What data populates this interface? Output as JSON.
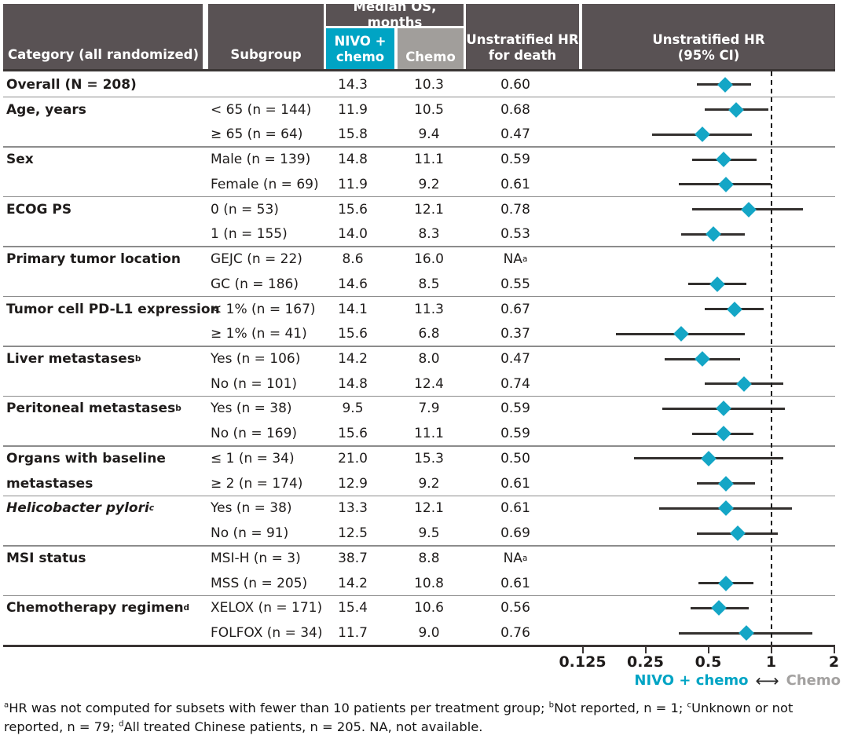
{
  "colors": {
    "header_bg": "#595254",
    "nivo_teal": "#00a4c4",
    "chemo_gray": "#a19e9b",
    "marker_teal": "#14a6c6",
    "text": "#1f1c1b",
    "separator": "#8c8c8c",
    "axis_dark": "#3a3534",
    "legend_chemo_gray": "#a3a1a0"
  },
  "header": {
    "category": "Category (all randomized)",
    "subgroup": "Subgroup",
    "median_os": "Median OS, months",
    "nivo_line1": "NIVO +",
    "nivo_line2": "chemo",
    "chemo": "Chemo",
    "hr_death_line1": "Unstratified HR",
    "hr_death_line2": "for death",
    "hr_ci_line1": "Unstratified HR",
    "hr_ci_line2": "(95% CI)"
  },
  "chart_data": {
    "type": "table",
    "description": "Forest plot of unstratified hazard ratios for death by subgroup",
    "x_axis": {
      "scale": "log2",
      "ticks": [
        0.125,
        0.25,
        0.5,
        1,
        2
      ],
      "tick_labels": [
        "0.125",
        "0.25",
        "0.5",
        "1",
        "2"
      ],
      "reference_line": 1
    },
    "legend": {
      "left": "NIVO + chemo",
      "arrow": "⟷",
      "right": "Chemo"
    },
    "groups": [
      {
        "category_lines": [
          "Overall (N = 208)"
        ],
        "category_sup": "",
        "italic": false,
        "rows": [
          {
            "subgroup": "",
            "nivo": "14.3",
            "chemo": "10.3",
            "hr_text": "0.60",
            "hr_sup": "",
            "hr": 0.6,
            "ci": [
              0.44,
              0.8
            ]
          }
        ]
      },
      {
        "category_lines": [
          "Age, years"
        ],
        "category_sup": "",
        "italic": false,
        "rows": [
          {
            "subgroup": "< 65 (n = 144)",
            "nivo": "11.9",
            "chemo": "10.5",
            "hr_text": "0.68",
            "hr_sup": "",
            "hr": 0.68,
            "ci": [
              0.48,
              0.97
            ]
          },
          {
            "subgroup": "≥ 65 (n = 64)",
            "nivo": "15.8",
            "chemo": "9.4",
            "hr_text": "0.47",
            "hr_sup": "",
            "hr": 0.47,
            "ci": [
              0.27,
              0.81
            ]
          }
        ]
      },
      {
        "category_lines": [
          "Sex"
        ],
        "category_sup": "",
        "italic": false,
        "rows": [
          {
            "subgroup": "Male (n = 139)",
            "nivo": "14.8",
            "chemo": "11.1",
            "hr_text": "0.59",
            "hr_sup": "",
            "hr": 0.59,
            "ci": [
              0.42,
              0.85
            ]
          },
          {
            "subgroup": "Female (n = 69)",
            "nivo": "11.9",
            "chemo": "9.2",
            "hr_text": "0.61",
            "hr_sup": "",
            "hr": 0.61,
            "ci": [
              0.36,
              1.0
            ]
          }
        ]
      },
      {
        "category_lines": [
          "ECOG PS"
        ],
        "category_sup": "",
        "italic": false,
        "rows": [
          {
            "subgroup": "0 (n = 53)",
            "nivo": "15.6",
            "chemo": "12.1",
            "hr_text": "0.78",
            "hr_sup": "",
            "hr": 0.78,
            "ci": [
              0.42,
              1.42
            ]
          },
          {
            "subgroup": "1 (n = 155)",
            "nivo": "14.0",
            "chemo": "8.3",
            "hr_text": "0.53",
            "hr_sup": "",
            "hr": 0.53,
            "ci": [
              0.37,
              0.75
            ]
          }
        ]
      },
      {
        "category_lines": [
          "Primary tumor location"
        ],
        "category_sup": "",
        "italic": false,
        "rows": [
          {
            "subgroup": "GEJC (n = 22)",
            "nivo": "8.6",
            "chemo": "16.0",
            "hr_text": "NA",
            "hr_sup": "a",
            "hr": null,
            "ci": null
          },
          {
            "subgroup": "GC (n = 186)",
            "nivo": "14.6",
            "chemo": "8.5",
            "hr_text": "0.55",
            "hr_sup": "",
            "hr": 0.55,
            "ci": [
              0.4,
              0.76
            ]
          }
        ]
      },
      {
        "category_lines": [
          "Tumor cell PD-L1 expression"
        ],
        "category_sup": "",
        "italic": false,
        "rows": [
          {
            "subgroup": "< 1% (n = 167)",
            "nivo": "14.1",
            "chemo": "11.3",
            "hr_text": "0.67",
            "hr_sup": "",
            "hr": 0.67,
            "ci": [
              0.48,
              0.92
            ]
          },
          {
            "subgroup": "≥ 1% (n = 41)",
            "nivo": "15.6",
            "chemo": "6.8",
            "hr_text": "0.37",
            "hr_sup": "",
            "hr": 0.37,
            "ci": [
              0.18,
              0.75
            ]
          }
        ]
      },
      {
        "category_lines": [
          "Liver metastases"
        ],
        "category_sup": "b",
        "italic": false,
        "rows": [
          {
            "subgroup": "Yes (n = 106)",
            "nivo": "14.2",
            "chemo": "8.0",
            "hr_text": "0.47",
            "hr_sup": "",
            "hr": 0.47,
            "ci": [
              0.31,
              0.71
            ]
          },
          {
            "subgroup": "No (n = 101)",
            "nivo": "14.8",
            "chemo": "12.4",
            "hr_text": "0.74",
            "hr_sup": "",
            "hr": 0.74,
            "ci": [
              0.48,
              1.14
            ]
          }
        ]
      },
      {
        "category_lines": [
          "Peritoneal metastases"
        ],
        "category_sup": "b",
        "italic": false,
        "rows": [
          {
            "subgroup": "Yes (n = 38)",
            "nivo": "9.5",
            "chemo": "7.9",
            "hr_text": "0.59",
            "hr_sup": "",
            "hr": 0.59,
            "ci": [
              0.3,
              1.16
            ]
          },
          {
            "subgroup": "No (n = 169)",
            "nivo": "15.6",
            "chemo": "11.1",
            "hr_text": "0.59",
            "hr_sup": "",
            "hr": 0.59,
            "ci": [
              0.42,
              0.82
            ]
          }
        ]
      },
      {
        "category_lines": [
          "Organs with baseline",
          "metastases"
        ],
        "category_sup": "",
        "italic": false,
        "rows": [
          {
            "subgroup": "≤ 1 (n = 34)",
            "nivo": "21.0",
            "chemo": "15.3",
            "hr_text": "0.50",
            "hr_sup": "",
            "hr": 0.5,
            "ci": [
              0.22,
              1.14
            ]
          },
          {
            "subgroup": "≥ 2 (n = 174)",
            "nivo": "12.9",
            "chemo": "9.2",
            "hr_text": "0.61",
            "hr_sup": "",
            "hr": 0.61,
            "ci": [
              0.44,
              0.84
            ]
          }
        ]
      },
      {
        "category_lines": [
          "Helicobacter pylori"
        ],
        "category_sup": "c",
        "italic": true,
        "rows": [
          {
            "subgroup": "Yes (n = 38)",
            "nivo": "13.3",
            "chemo": "12.1",
            "hr_text": "0.61",
            "hr_sup": "",
            "hr": 0.61,
            "ci": [
              0.29,
              1.26
            ]
          },
          {
            "subgroup": "No (n = 91)",
            "nivo": "12.5",
            "chemo": "9.5",
            "hr_text": "0.69",
            "hr_sup": "",
            "hr": 0.69,
            "ci": [
              0.44,
              1.08
            ]
          }
        ]
      },
      {
        "category_lines": [
          "MSI status"
        ],
        "category_sup": "",
        "italic": false,
        "rows": [
          {
            "subgroup": "MSI-H (n = 3)",
            "nivo": "38.7",
            "chemo": "8.8",
            "hr_text": "NA",
            "hr_sup": "a",
            "hr": null,
            "ci": null
          },
          {
            "subgroup": "MSS (n = 205)",
            "nivo": "14.2",
            "chemo": "10.8",
            "hr_text": "0.61",
            "hr_sup": "",
            "hr": 0.61,
            "ci": [
              0.45,
              0.82
            ]
          }
        ]
      },
      {
        "category_lines": [
          "Chemotherapy regimen"
        ],
        "category_sup": "d",
        "italic": false,
        "rows": [
          {
            "subgroup": "XELOX (n = 171)",
            "nivo": "15.4",
            "chemo": "10.6",
            "hr_text": "0.56",
            "hr_sup": "",
            "hr": 0.56,
            "ci": [
              0.41,
              0.78
            ]
          },
          {
            "subgroup": "FOLFOX (n = 34)",
            "nivo": "11.7",
            "chemo": "9.0",
            "hr_text": "0.76",
            "hr_sup": "",
            "hr": 0.76,
            "ci": [
              0.36,
              1.58
            ]
          }
        ]
      }
    ]
  },
  "footnote": {
    "segments": [
      {
        "sup": "a"
      },
      {
        "text": "HR was not computed for subsets with fewer than 10 patients per treatment group; "
      },
      {
        "sup": "b"
      },
      {
        "text": "Not reported, n = 1; "
      },
      {
        "sup": "c"
      },
      {
        "text": "Unknown or not reported, n = 79; "
      },
      {
        "sup": "d"
      },
      {
        "text": "All treated Chinese patients, n = 205. NA, not available."
      }
    ]
  }
}
